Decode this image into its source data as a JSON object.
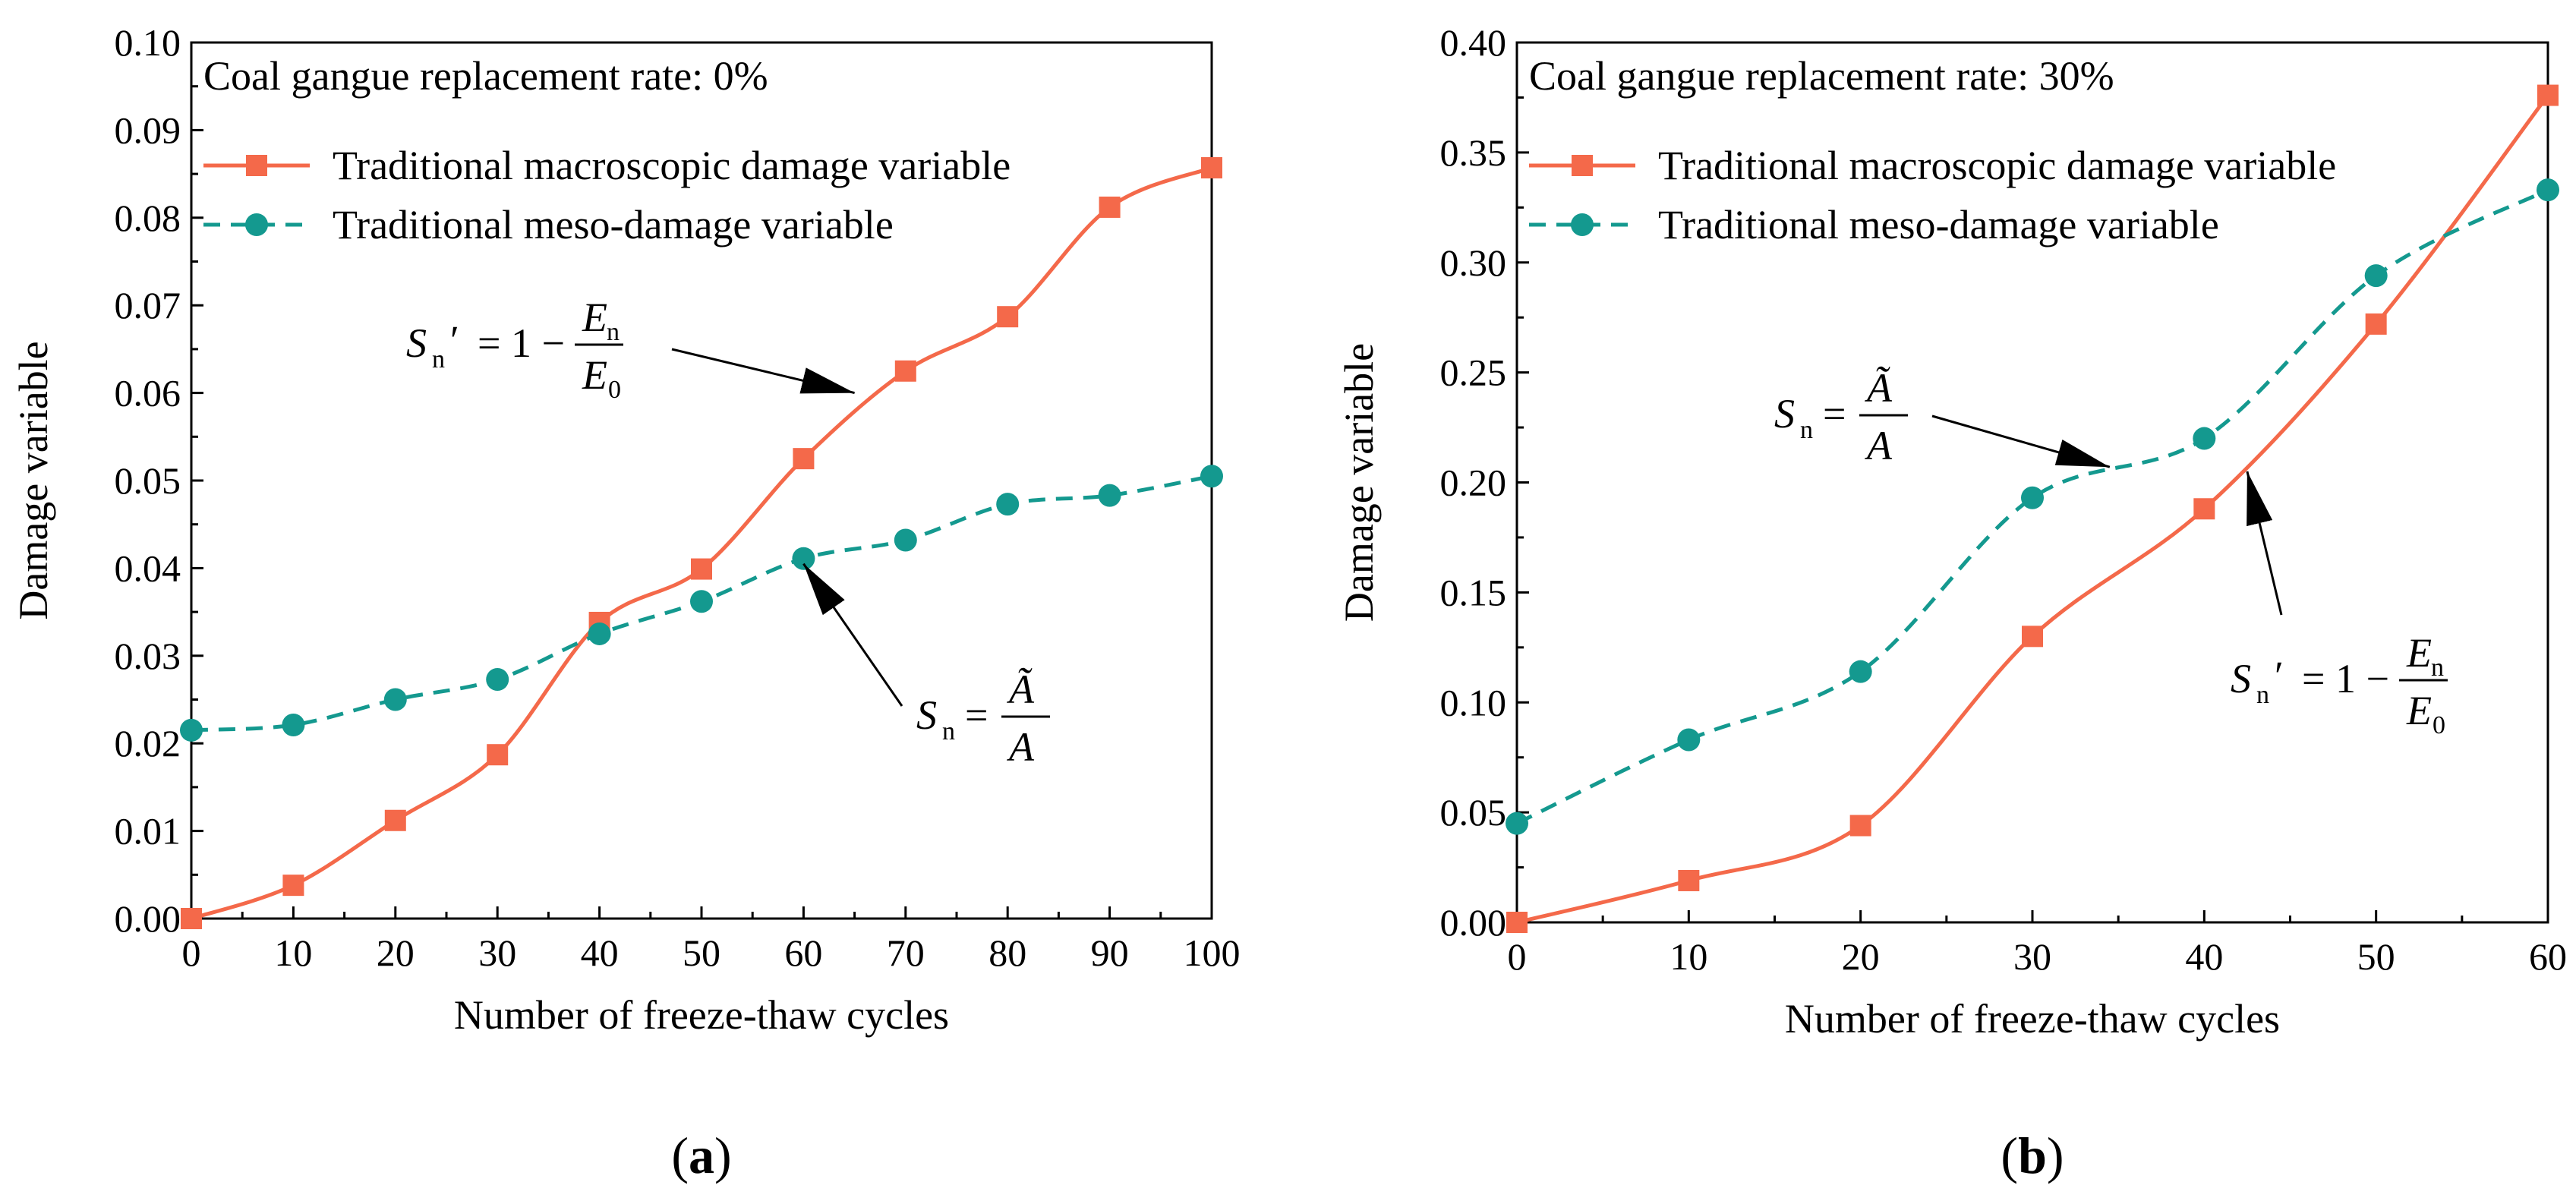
{
  "colors": {
    "macro": "#f4694a",
    "meso": "#14998f",
    "axis": "#000000"
  },
  "chart_data": [
    {
      "type": "line",
      "panel_label": "a",
      "title": "Coal gangue replacement rate: 0%",
      "xlabel": "Number of freeze-thaw cycles",
      "ylabel": "Damage variable",
      "xlim": [
        0,
        100
      ],
      "ylim": [
        0,
        0.1
      ],
      "xticks": [
        "0",
        "10",
        "20",
        "30",
        "40",
        "50",
        "60",
        "70",
        "80",
        "90",
        "100"
      ],
      "yticks": [
        "0.00",
        "0.01",
        "0.02",
        "0.03",
        "0.04",
        "0.05",
        "0.06",
        "0.07",
        "0.08",
        "0.09",
        "0.10"
      ],
      "series": [
        {
          "name": "Traditional macroscopic damage variable",
          "style": "solid",
          "marker": "square",
          "x": [
            0,
            10,
            20,
            30,
            40,
            50,
            60,
            70,
            80,
            90,
            100
          ],
          "y": [
            0.0,
            0.0038,
            0.0112,
            0.0187,
            0.0338,
            0.0399,
            0.0525,
            0.0625,
            0.0687,
            0.0812,
            0.0857
          ]
        },
        {
          "name": "Traditional meso-damage variable",
          "style": "dashed",
          "marker": "circle",
          "x": [
            0,
            10,
            20,
            30,
            40,
            50,
            60,
            70,
            80,
            90,
            100
          ],
          "y": [
            0.0215,
            0.0221,
            0.025,
            0.0273,
            0.0325,
            0.0362,
            0.0411,
            0.0432,
            0.0473,
            0.0483,
            0.0505
          ]
        }
      ],
      "annotations": {
        "macro_eq": {
          "lhs": "S",
          "sub": "n",
          "prime": "′",
          "rhs": "= 1 −",
          "num": "E",
          "num_sub": "n",
          "den": "E",
          "den_sub": "0",
          "points_to": [
            65,
            0.06
          ]
        },
        "meso_eq": {
          "lhs": "S",
          "sub": "n",
          "rhs": "=",
          "num": "Ã",
          "den": "A",
          "points_to": [
            60,
            0.0405
          ]
        }
      }
    },
    {
      "type": "line",
      "panel_label": "b",
      "title": "Coal gangue replacement rate: 30%",
      "xlabel": "Number of freeze-thaw cycles",
      "ylabel": "Damage variable",
      "xlim": [
        0,
        60
      ],
      "ylim": [
        0,
        0.4
      ],
      "xticks": [
        "0",
        "10",
        "20",
        "30",
        "40",
        "50",
        "60"
      ],
      "yticks": [
        "0.00",
        "0.05",
        "0.10",
        "0.15",
        "0.20",
        "0.25",
        "0.30",
        "0.35",
        "0.40"
      ],
      "series": [
        {
          "name": "Traditional macroscopic damage variable",
          "style": "solid",
          "marker": "square",
          "x": [
            0,
            10,
            20,
            30,
            40,
            50,
            60
          ],
          "y": [
            0.0,
            0.019,
            0.044,
            0.13,
            0.188,
            0.272,
            0.376
          ]
        },
        {
          "name": "Traditional meso-damage variable",
          "style": "dashed",
          "marker": "circle",
          "x": [
            0,
            10,
            20,
            30,
            40,
            50,
            60
          ],
          "y": [
            0.045,
            0.083,
            0.114,
            0.193,
            0.22,
            0.294,
            0.333
          ]
        }
      ],
      "annotations": {
        "meso_eq": {
          "lhs": "S",
          "sub": "n",
          "rhs": "=",
          "num": "Ã",
          "den": "A",
          "points_to": [
            34.5,
            0.207
          ]
        },
        "macro_eq": {
          "lhs": "S",
          "sub": "n",
          "prime": "′",
          "rhs": "= 1 −",
          "num": "E",
          "num_sub": "n",
          "den": "E",
          "den_sub": "0",
          "points_to": [
            42.5,
            0.205
          ]
        }
      }
    }
  ]
}
